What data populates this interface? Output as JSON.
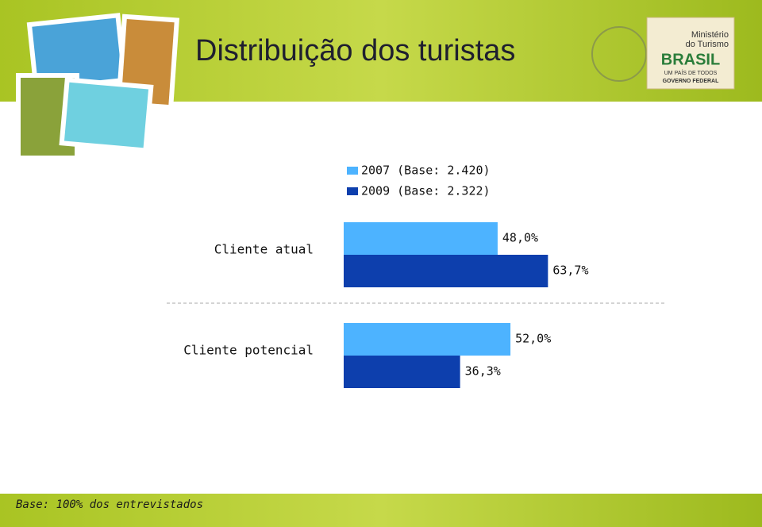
{
  "chart_data": {
    "type": "bar",
    "orientation": "horizontal",
    "title": "Distribuição dos turistas",
    "categories": [
      "Cliente atual",
      "Cliente potencial"
    ],
    "series": [
      {
        "name": "2007 (Base: 2.420)",
        "color": "#4db3ff",
        "values": [
          48.0,
          52.0
        ],
        "value_labels": [
          "48,0%",
          "52,0%"
        ]
      },
      {
        "name": "2009 (Base: 2.322)",
        "color": "#0d3fad",
        "values": [
          63.7,
          36.3
        ],
        "value_labels": [
          "63,7%",
          "36,3%"
        ]
      }
    ],
    "footnote": "Base: 100% dos entrevistados"
  },
  "logo": {
    "line1": "Ministério",
    "line2": "do Turismo",
    "brand": "BRASIL",
    "tagline": "UM PAÍS DE TODOS",
    "government": "GOVERNO FEDERAL"
  }
}
